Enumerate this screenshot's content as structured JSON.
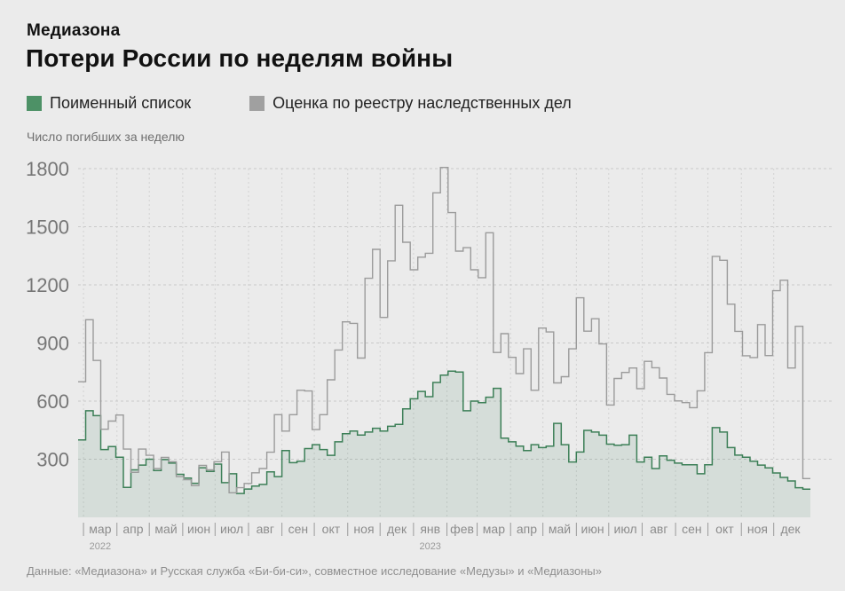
{
  "page": {
    "background": "#ebebeb"
  },
  "header": {
    "brand": "Медиазона",
    "title": "Потери России по неделям войны"
  },
  "legend": [
    {
      "label": "Поименный список",
      "color": "#4d9166"
    },
    {
      "label": "Оценка по реестру наследственных дел",
      "color": "#a0a0a0"
    }
  ],
  "axis_caption": "Число погибших за неделю",
  "footer": "Данные: «Медиазона» и Русская служба «Би-би-си», совместное исследование «Медузы» и «Медиазоны»",
  "chart_data": {
    "type": "line",
    "subtype": "weekly step series, one value per week of the war starting late February 2022",
    "title": "Потери России по неделям войны",
    "ylabel": "Число погибших за неделю",
    "y_ticks": [
      300,
      600,
      900,
      1200,
      1500,
      1800
    ],
    "ylim": [
      0,
      1870
    ],
    "grid": "dashed horizontal and vertical (month boundaries)",
    "legend_position": "top",
    "months": [
      {
        "label": "мар",
        "day": 5,
        "year": "2022"
      },
      {
        "label": "апр",
        "day": 36
      },
      {
        "label": "май",
        "day": 66
      },
      {
        "label": "июн",
        "day": 97
      },
      {
        "label": "июл",
        "day": 127
      },
      {
        "label": "авг",
        "day": 158
      },
      {
        "label": "сен",
        "day": 189
      },
      {
        "label": "окт",
        "day": 219
      },
      {
        "label": "ноя",
        "day": 250
      },
      {
        "label": "дек",
        "day": 280
      },
      {
        "label": "янв",
        "day": 311,
        "year": "2023"
      },
      {
        "label": "фев",
        "day": 342
      },
      {
        "label": "мар",
        "day": 370
      },
      {
        "label": "апр",
        "day": 401
      },
      {
        "label": "май",
        "day": 431
      },
      {
        "label": "июн",
        "day": 462
      },
      {
        "label": "июл",
        "day": 492
      },
      {
        "label": "авг",
        "day": 523
      },
      {
        "label": "сен",
        "day": 554
      },
      {
        "label": "окт",
        "day": 584
      },
      {
        "label": "ноя",
        "day": 615
      },
      {
        "label": "дек",
        "day": 645,
        "end_day": 676
      }
    ],
    "series": [
      {
        "name": "Поименный список",
        "style": "step-area",
        "color": "#3c7f57",
        "fill": "rgba(60,127,87,0.12)",
        "values": [
          400,
          550,
          525,
          350,
          365,
          310,
          155,
          245,
          270,
          300,
          242,
          298,
          280,
          222,
          203,
          176,
          256,
          237,
          275,
          179,
          225,
          123,
          146,
          161,
          170,
          235,
          210,
          345,
          282,
          290,
          355,
          375,
          350,
          320,
          390,
          432,
          445,
          425,
          440,
          460,
          445,
          470,
          480,
          560,
          612,
          650,
          623,
          696,
          734,
          755,
          750,
          550,
          600,
          592,
          620,
          666,
          409,
          390,
          368,
          345,
          375,
          360,
          368,
          485,
          375,
          286,
          337,
          449,
          440,
          424,
          378,
          372,
          375,
          424,
          286,
          310,
          252,
          317,
          295,
          280,
          271,
          271,
          225,
          271,
          463,
          440,
          360,
          321,
          310,
          290,
          270,
          255,
          229,
          206,
          188,
          153,
          145
        ]
      },
      {
        "name": "Оценка по реестру наследственных дел",
        "style": "step-line",
        "color": "#9b9b9b",
        "values": [
          700,
          1020,
          810,
          455,
          497,
          528,
          352,
          232,
          352,
          320,
          252,
          309,
          287,
          210,
          194,
          164,
          268,
          245,
          287,
          337,
          127,
          153,
          175,
          230,
          252,
          336,
          530,
          445,
          530,
          656,
          652,
          453,
          530,
          710,
          864,
          1009,
          1001,
          822,
          1234,
          1383,
          1032,
          1324,
          1611,
          1420,
          1278,
          1343,
          1363,
          1675,
          1806,
          1573,
          1374,
          1392,
          1278,
          1237,
          1469,
          851,
          948,
          826,
          742,
          870,
          656,
          977,
          957,
          694,
          726,
          870,
          1133,
          961,
          1025,
          895,
          580,
          717,
          748,
          771,
          664,
          805,
          772,
          719,
          635,
          601,
          592,
          566,
          653,
          850,
          1347,
          1327,
          1100,
          960,
          834,
          825,
          995,
          835,
          1170,
          1224,
          771,
          986,
          200
        ]
      }
    ],
    "colors": {
      "background": "#ebebeb",
      "grid": "#c9c9c9",
      "vertical_grid": "#d2d2d2",
      "y_tick_text": "#767676",
      "month_text": "#8c8c8c",
      "year_text": "#9a9a9a"
    }
  }
}
